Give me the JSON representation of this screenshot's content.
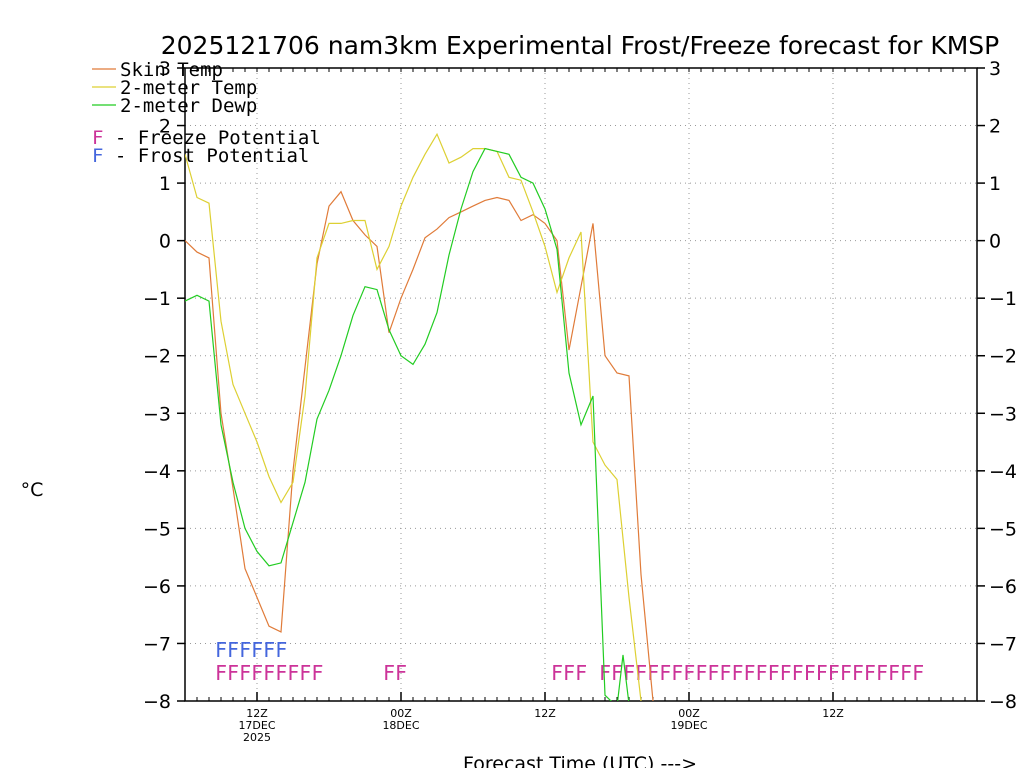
{
  "chart_data": {
    "type": "line",
    "title": "2025121706 nam3km Experimental Frost/Freeze forecast for KMSP",
    "xlabel": "Forecast Time (UTC) --->",
    "ylabel": "°C",
    "ylim": [
      -8,
      3
    ],
    "xlim_hours": [
      0,
      66
    ],
    "yticks": [
      -8,
      -7,
      -6,
      -5,
      -4,
      -3,
      -2,
      -1,
      0,
      1,
      2,
      3
    ],
    "grid": true,
    "xticks": [
      {
        "hour": 6,
        "lines": [
          "12Z",
          "17DEC",
          "2025"
        ]
      },
      {
        "hour": 18,
        "lines": [
          "00Z",
          "18DEC"
        ]
      },
      {
        "hour": 30,
        "lines": [
          "12Z"
        ]
      },
      {
        "hour": 42,
        "lines": [
          "00Z",
          "19DEC"
        ]
      },
      {
        "hour": 54,
        "lines": [
          "12Z"
        ]
      }
    ],
    "legend": {
      "position": "top-left",
      "series_entries": [
        "Skin Temp",
        "2-meter Temp",
        "2-meter Dewp"
      ],
      "flag_entries": [
        {
          "letter": "F",
          "text": " - Freeze Potential",
          "color": "#cc3399"
        },
        {
          "letter": "F",
          "text": " - Frost Potential",
          "color": "#4466dd"
        }
      ]
    },
    "series": [
      {
        "name": "Skin Temp",
        "color": "#e07b39",
        "points": [
          [
            0,
            0.0
          ],
          [
            1,
            -0.2
          ],
          [
            2,
            -0.3
          ],
          [
            3,
            -3.0
          ],
          [
            4,
            -4.3
          ],
          [
            5,
            -5.7
          ],
          [
            6,
            -6.2
          ],
          [
            7,
            -6.7
          ],
          [
            8,
            -6.8
          ],
          [
            9,
            -4.0
          ],
          [
            11,
            -0.4
          ],
          [
            12,
            0.6
          ],
          [
            13,
            0.85
          ],
          [
            14,
            0.35
          ],
          [
            15,
            0.1
          ],
          [
            16,
            -0.1
          ],
          [
            17,
            -1.6
          ],
          [
            18,
            -1.0
          ],
          [
            19,
            -0.5
          ],
          [
            20,
            0.05
          ],
          [
            21,
            0.2
          ],
          [
            22,
            0.4
          ],
          [
            23,
            0.5
          ],
          [
            24,
            0.6
          ],
          [
            25,
            0.7
          ],
          [
            26,
            0.75
          ],
          [
            27,
            0.7
          ],
          [
            28,
            0.35
          ],
          [
            29,
            0.45
          ],
          [
            30,
            0.3
          ],
          [
            31,
            0.0
          ],
          [
            32,
            -1.9
          ],
          [
            33,
            -0.8
          ],
          [
            34,
            0.3
          ],
          [
            35,
            -2.0
          ],
          [
            36,
            -2.3
          ],
          [
            37,
            -2.35
          ],
          [
            38,
            -5.8
          ],
          [
            39,
            -8.0
          ]
        ]
      },
      {
        "name": "2-meter Temp",
        "color": "#ddd033",
        "points": [
          [
            0,
            1.5
          ],
          [
            1,
            0.75
          ],
          [
            2,
            0.65
          ],
          [
            3,
            -1.4
          ],
          [
            4,
            -2.5
          ],
          [
            5,
            -3.0
          ],
          [
            6,
            -3.5
          ],
          [
            7,
            -4.1
          ],
          [
            8,
            -4.55
          ],
          [
            9,
            -4.2
          ],
          [
            10,
            -2.7
          ],
          [
            11,
            -0.3
          ],
          [
            12,
            0.3
          ],
          [
            13,
            0.3
          ],
          [
            14,
            0.35
          ],
          [
            15,
            0.35
          ],
          [
            16,
            -0.5
          ],
          [
            17,
            -0.1
          ],
          [
            18,
            0.6
          ],
          [
            19,
            1.1
          ],
          [
            20,
            1.5
          ],
          [
            21,
            1.85
          ],
          [
            22,
            1.35
          ],
          [
            23,
            1.45
          ],
          [
            24,
            1.6
          ],
          [
            25,
            1.6
          ],
          [
            26,
            1.55
          ],
          [
            27,
            1.1
          ],
          [
            28,
            1.05
          ],
          [
            29,
            0.5
          ],
          [
            30,
            -0.1
          ],
          [
            31,
            -0.9
          ],
          [
            32,
            -0.3
          ],
          [
            33,
            0.15
          ],
          [
            34,
            -3.5
          ],
          [
            35,
            -3.9
          ],
          [
            36,
            -4.15
          ],
          [
            37,
            -6.2
          ],
          [
            38,
            -8.0
          ]
        ]
      },
      {
        "name": "2-meter Dewp",
        "color": "#22cc22",
        "points": [
          [
            0,
            -1.05
          ],
          [
            1,
            -0.95
          ],
          [
            2,
            -1.05
          ],
          [
            3,
            -3.2
          ],
          [
            4,
            -4.2
          ],
          [
            5,
            -5.0
          ],
          [
            6,
            -5.4
          ],
          [
            7,
            -5.65
          ],
          [
            8,
            -5.6
          ],
          [
            9,
            -4.9
          ],
          [
            10,
            -4.2
          ],
          [
            11,
            -3.1
          ],
          [
            12,
            -2.6
          ],
          [
            13,
            -2.0
          ],
          [
            14,
            -1.3
          ],
          [
            15,
            -0.8
          ],
          [
            16,
            -0.85
          ],
          [
            17,
            -1.55
          ],
          [
            18,
            -2.0
          ],
          [
            19,
            -2.15
          ],
          [
            20,
            -1.8
          ],
          [
            21,
            -1.25
          ],
          [
            22,
            -0.25
          ],
          [
            23,
            0.55
          ],
          [
            24,
            1.2
          ],
          [
            25,
            1.6
          ],
          [
            26,
            1.55
          ],
          [
            27,
            1.5
          ],
          [
            28,
            1.1
          ],
          [
            29,
            1.0
          ],
          [
            30,
            0.55
          ],
          [
            31,
            -0.15
          ],
          [
            32,
            -2.3
          ],
          [
            33,
            -3.2
          ],
          [
            34,
            -2.7
          ],
          [
            35,
            -7.9
          ],
          [
            36,
            -8.1
          ],
          [
            36.5,
            -7.2
          ],
          [
            37,
            -8.05
          ]
        ]
      }
    ],
    "flags": [
      {
        "kind": "Frost Potential",
        "color": "#4466dd",
        "start_hour": 2.5,
        "text": "FFFFFF"
      },
      {
        "kind": "Freeze Potential",
        "color": "#cc3399",
        "start_hour": 2.5,
        "text": "FFFFFFFFF"
      },
      {
        "kind": "Freeze Potential",
        "color": "#cc3399",
        "start_hour": 16.5,
        "text": "FF"
      },
      {
        "kind": "Freeze Potential",
        "color": "#cc3399",
        "start_hour": 30.5,
        "text": "FFF"
      },
      {
        "kind": "Freeze Potential",
        "color": "#cc3399",
        "start_hour": 34.5,
        "text": "FFFFFFFFFFFFFFFFFFFFFFFFFFF"
      }
    ]
  }
}
